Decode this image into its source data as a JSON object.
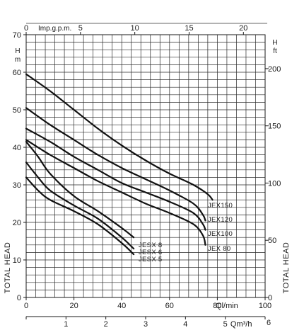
{
  "chart_data": {
    "type": "line",
    "grid": true,
    "legend": "curve labels at right end of curves",
    "left_axis": {
      "title": "TOTAL HEAD",
      "unit": "H m",
      "ylim": [
        0,
        70
      ],
      "ticks": [
        0,
        10,
        20,
        30,
        40,
        50,
        60,
        70
      ]
    },
    "right_axis": {
      "title": "TOTAL HEAD",
      "unit": "H ft",
      "ticks": [
        0,
        50,
        100,
        150,
        200
      ]
    },
    "top_axis": {
      "unit": "Imp.g.p.m.",
      "ticks": [
        0,
        5,
        10,
        15,
        20
      ]
    },
    "bottom_axis_lmin": {
      "unit": "Ql/min",
      "xlim": [
        0,
        100
      ],
      "ticks": [
        0,
        20,
        40,
        60,
        80,
        100
      ]
    },
    "bottom_axis_m3h": {
      "unit": "Qm³/h",
      "ticks": [
        0,
        1,
        2,
        3,
        4,
        5,
        6
      ]
    },
    "series": [
      {
        "name": "JEX150",
        "x": [
          0,
          10,
          20,
          30,
          40,
          50,
          60,
          70,
          76,
          78
        ],
        "y": [
          59.5,
          55,
          50,
          45,
          40.5,
          36.5,
          33,
          30,
          27.5,
          26
        ]
      },
      {
        "name": "JEX120",
        "x": [
          0,
          10,
          20,
          30,
          40,
          50,
          60,
          70,
          74,
          75
        ],
        "y": [
          50.5,
          46,
          42,
          38,
          34.5,
          31.5,
          28.5,
          25,
          22,
          20.5
        ]
      },
      {
        "name": "JEX100",
        "x": [
          0,
          10,
          20,
          30,
          40,
          50,
          60,
          70,
          74,
          75
        ],
        "y": [
          45,
          41.5,
          37.5,
          34,
          30.5,
          28,
          25.5,
          22.5,
          19.5,
          18
        ]
      },
      {
        "name": "JEX 80",
        "x": [
          0,
          10,
          20,
          30,
          40,
          50,
          60,
          70,
          74,
          75
        ],
        "y": [
          42,
          38,
          34.5,
          31,
          28,
          25,
          22.5,
          19.5,
          16.5,
          14
        ]
      },
      {
        "name": "JESX 8",
        "x": [
          0,
          5,
          10,
          20,
          30,
          40,
          45
        ],
        "y": [
          41.5,
          37.5,
          33,
          27,
          23,
          18.5,
          16
        ]
      },
      {
        "name": "JESX 6",
        "x": [
          0,
          5,
          10,
          20,
          30,
          40,
          45
        ],
        "y": [
          36,
          32,
          28.5,
          24.5,
          21,
          16,
          13
        ]
      },
      {
        "name": "JESX 5",
        "x": [
          0,
          5,
          10,
          20,
          30,
          40,
          45
        ],
        "y": [
          32,
          28.5,
          26,
          23,
          19.5,
          14.5,
          11.5
        ]
      }
    ]
  }
}
